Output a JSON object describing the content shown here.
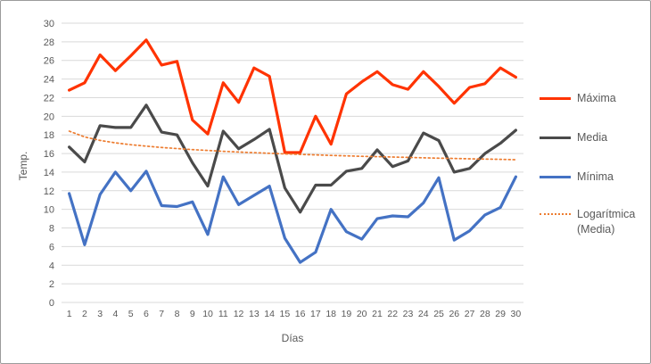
{
  "chart_data": {
    "type": "line",
    "title": "",
    "xlabel": "Días",
    "ylabel": "Temp.",
    "ylim": [
      0,
      30
    ],
    "yticks": [
      0,
      2,
      4,
      6,
      8,
      10,
      12,
      14,
      16,
      18,
      20,
      22,
      24,
      26,
      28,
      30
    ],
    "grid": "horizontal",
    "legend_position": "right",
    "categories": [
      1,
      2,
      3,
      4,
      5,
      6,
      7,
      8,
      9,
      10,
      11,
      12,
      13,
      14,
      15,
      16,
      17,
      18,
      19,
      20,
      21,
      22,
      23,
      24,
      25,
      26,
      27,
      28,
      29,
      30
    ],
    "series": [
      {
        "name": "Máxima",
        "color": "#FF3300",
        "style": "solid",
        "values": [
          22.8,
          23.6,
          26.6,
          24.9,
          26.5,
          28.2,
          25.5,
          25.9,
          19.6,
          18.1,
          23.6,
          21.5,
          25.2,
          24.3,
          16.1,
          16.1,
          20.0,
          17.0,
          22.4,
          23.7,
          24.8,
          23.4,
          22.9,
          24.8,
          23.2,
          21.4,
          23.1,
          23.5,
          25.2,
          24.2
        ]
      },
      {
        "name": "Media",
        "color": "#4A4A4A",
        "style": "solid",
        "values": [
          16.7,
          15.1,
          19.0,
          18.8,
          18.8,
          21.2,
          18.3,
          18.0,
          15.0,
          12.5,
          18.4,
          16.5,
          17.5,
          18.6,
          12.3,
          9.7,
          12.6,
          12.6,
          14.1,
          14.4,
          16.4,
          14.6,
          15.2,
          18.2,
          17.4,
          14.0,
          14.4,
          16.0,
          17.1,
          18.5
        ]
      },
      {
        "name": "Mínima",
        "color": "#4472C4",
        "style": "solid",
        "values": [
          11.7,
          6.2,
          11.6,
          14.0,
          12.0,
          14.1,
          10.4,
          10.3,
          10.8,
          7.3,
          13.5,
          10.5,
          11.5,
          12.5,
          6.9,
          4.3,
          5.4,
          10.0,
          7.6,
          6.8,
          9.0,
          9.3,
          9.2,
          10.7,
          13.4,
          6.7,
          7.7,
          9.4,
          10.2,
          13.5
        ]
      },
      {
        "name": "Logarítmica (Media)",
        "color": "#ED7D31",
        "style": "dotted",
        "trendline_of": "Media",
        "values": [
          18.4,
          17.78,
          17.41,
          17.15,
          16.95,
          16.79,
          16.65,
          16.53,
          16.42,
          16.33,
          16.24,
          16.16,
          16.09,
          16.03,
          15.96,
          15.9,
          15.85,
          15.8,
          15.75,
          15.7,
          15.66,
          15.62,
          15.58,
          15.54,
          15.5,
          15.47,
          15.43,
          15.4,
          15.37,
          15.34
        ]
      }
    ]
  },
  "axes": {
    "x_title": "Días",
    "y_title": "Temp."
  },
  "legend": {
    "items": [
      {
        "label": "Máxima"
      },
      {
        "label": "Media"
      },
      {
        "label": "Mínima"
      },
      {
        "label": "Logarítmica",
        "label2": "(Media)"
      }
    ]
  },
  "colors": {
    "grid": "#D9D9D9",
    "text": "#595959",
    "background": "#FFFFFF",
    "border": "#9B9B9B"
  }
}
